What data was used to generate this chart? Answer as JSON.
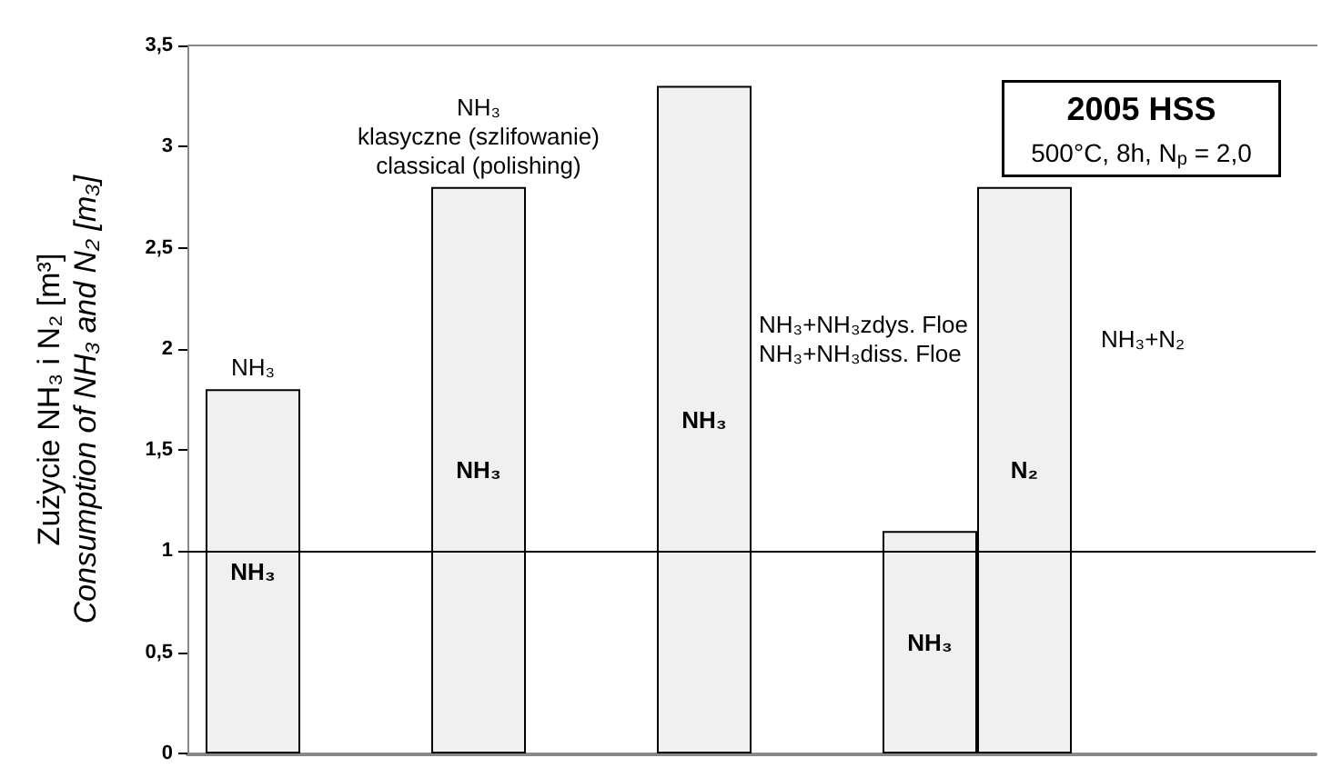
{
  "chart_data": {
    "type": "bar",
    "title": "2005 HSS",
    "subtitle": "500°C, 8h, N$_{p}$ = 2,0",
    "ylabel": "Zużycie NH₃ i N₂ [m³]\nConsumption of NH₃ and N₂ [m₃]",
    "categories": [
      null,
      null,
      null,
      null,
      null
    ],
    "series": [
      {
        "name": "NH₃",
        "color": "#f0f0f0",
        "values": [
          1.8,
          2.8,
          3.3,
          1.1,
          null
        ]
      },
      {
        "name": "N₂",
        "color": "#f0f0f0",
        "values": [
          null,
          null,
          null,
          2.8,
          null
        ]
      }
    ],
    "ylim": [
      0,
      3.5
    ],
    "yticks": [
      0,
      {
        "value": 0.5,
        "label": "0,5"
      },
      1,
      {
        "value": 1.5,
        "label": "1,5"
      },
      2,
      {
        "value": 2.5,
        "label": "2,5"
      },
      3,
      {
        "value": 3.5,
        "label": "3,5"
      }
    ],
    "ref_lines": [
      {
        "axis": "y",
        "value": 1,
        "color": "#000000"
      }
    ],
    "annotations": [
      "NH₃",
      "NH₃\nklasyczne (szlifowanie)\nclassical (polishing)",
      "NH₃+NH₃zdys. Floe\nNH₃+NH₃diss. Floe",
      "NH₃+N₂"
    ],
    "tick_labels": "y",
    "grid": false,
    "legend": false
  }
}
